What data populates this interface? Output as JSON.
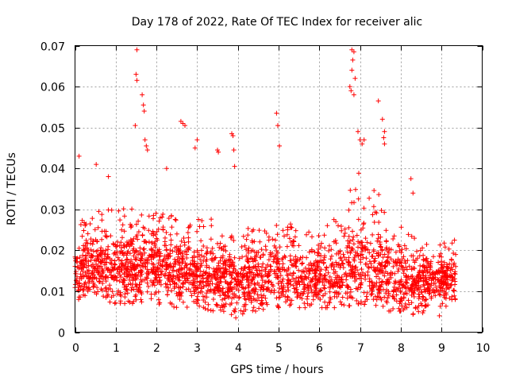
{
  "chart_data": {
    "type": "scatter",
    "title": "Day 178 of 2022, Rate Of TEC Index for receiver alic",
    "xlabel": "GPS time / hours",
    "ylabel": "ROTI / TECUs",
    "xlim": [
      0,
      10
    ],
    "ylim": [
      0,
      0.07
    ],
    "xticks": [
      0,
      1,
      2,
      3,
      4,
      5,
      6,
      7,
      8,
      9,
      10
    ],
    "yticks": [
      0,
      0.01,
      0.02,
      0.03,
      0.04,
      0.05,
      0.06,
      0.07
    ],
    "xtick_labels": [
      "0",
      "1",
      "2",
      "3",
      "4",
      "5",
      "6",
      "7",
      "8",
      "9",
      "10"
    ],
    "ytick_labels": [
      "0",
      "0.01",
      "0.02",
      "0.03",
      "0.04",
      "0.05",
      "0.06",
      "0.07"
    ],
    "grid": true,
    "marker": "+",
    "color": "#ff0000",
    "data_time_range": [
      0.0,
      9.35
    ],
    "series_envelope": {
      "x": [
        0.0,
        0.5,
        1.0,
        1.5,
        2.0,
        2.5,
        3.0,
        3.5,
        4.0,
        4.5,
        5.0,
        5.5,
        6.0,
        6.5,
        7.0,
        7.5,
        8.0,
        8.5,
        9.0,
        9.35
      ],
      "typical": [
        0.014,
        0.016,
        0.015,
        0.016,
        0.016,
        0.015,
        0.014,
        0.014,
        0.013,
        0.014,
        0.014,
        0.013,
        0.013,
        0.014,
        0.016,
        0.015,
        0.013,
        0.012,
        0.013,
        0.013
      ],
      "upper": [
        0.026,
        0.03,
        0.03,
        0.032,
        0.03,
        0.028,
        0.028,
        0.028,
        0.028,
        0.027,
        0.032,
        0.025,
        0.025,
        0.03,
        0.04,
        0.034,
        0.026,
        0.022,
        0.022,
        0.022
      ],
      "lower": [
        0.008,
        0.008,
        0.007,
        0.007,
        0.007,
        0.006,
        0.006,
        0.005,
        0.004,
        0.005,
        0.006,
        0.006,
        0.006,
        0.006,
        0.007,
        0.006,
        0.004,
        0.004,
        0.006,
        0.006
      ]
    },
    "notable_points": [
      {
        "x": 0.1,
        "y": 0.043
      },
      {
        "x": 0.52,
        "y": 0.041
      },
      {
        "x": 0.82,
        "y": 0.038
      },
      {
        "x": 1.52,
        "y": 0.069
      },
      {
        "x": 1.5,
        "y": 0.063
      },
      {
        "x": 1.52,
        "y": 0.0615
      },
      {
        "x": 1.65,
        "y": 0.058
      },
      {
        "x": 1.68,
        "y": 0.0555
      },
      {
        "x": 1.7,
        "y": 0.054
      },
      {
        "x": 1.48,
        "y": 0.0505
      },
      {
        "x": 1.72,
        "y": 0.047
      },
      {
        "x": 1.75,
        "y": 0.0455
      },
      {
        "x": 1.78,
        "y": 0.0445
      },
      {
        "x": 2.25,
        "y": 0.04
      },
      {
        "x": 2.6,
        "y": 0.0515
      },
      {
        "x": 2.65,
        "y": 0.051
      },
      {
        "x": 2.7,
        "y": 0.0505
      },
      {
        "x": 2.95,
        "y": 0.045
      },
      {
        "x": 3.0,
        "y": 0.047
      },
      {
        "x": 3.5,
        "y": 0.0445
      },
      {
        "x": 3.52,
        "y": 0.044
      },
      {
        "x": 3.85,
        "y": 0.0485
      },
      {
        "x": 3.88,
        "y": 0.048
      },
      {
        "x": 3.9,
        "y": 0.0445
      },
      {
        "x": 3.92,
        "y": 0.0405
      },
      {
        "x": 4.95,
        "y": 0.0535
      },
      {
        "x": 4.98,
        "y": 0.0505
      },
      {
        "x": 5.02,
        "y": 0.0455
      },
      {
        "x": 6.8,
        "y": 0.069
      },
      {
        "x": 6.85,
        "y": 0.0685
      },
      {
        "x": 6.82,
        "y": 0.0665
      },
      {
        "x": 6.8,
        "y": 0.064
      },
      {
        "x": 6.88,
        "y": 0.062
      },
      {
        "x": 6.75,
        "y": 0.06
      },
      {
        "x": 6.78,
        "y": 0.059
      },
      {
        "x": 6.85,
        "y": 0.058
      },
      {
        "x": 6.95,
        "y": 0.049
      },
      {
        "x": 7.0,
        "y": 0.047
      },
      {
        "x": 7.05,
        "y": 0.046
      },
      {
        "x": 7.1,
        "y": 0.047
      },
      {
        "x": 7.45,
        "y": 0.0565
      },
      {
        "x": 7.55,
        "y": 0.052
      },
      {
        "x": 7.6,
        "y": 0.049
      },
      {
        "x": 7.58,
        "y": 0.0475
      },
      {
        "x": 7.6,
        "y": 0.046
      },
      {
        "x": 8.25,
        "y": 0.0375
      },
      {
        "x": 8.3,
        "y": 0.034
      },
      {
        "x": 3.95,
        "y": 0.0035
      },
      {
        "x": 8.95,
        "y": 0.004
      },
      {
        "x": 9.32,
        "y": 0.0225
      }
    ]
  }
}
